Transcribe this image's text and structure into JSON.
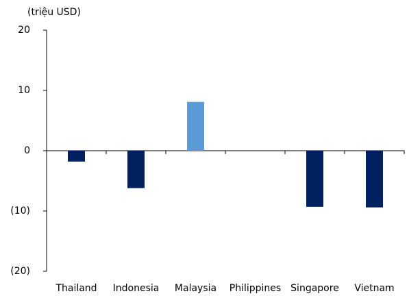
{
  "chart_data": {
    "type": "bar",
    "y_label": "(triệu USD)",
    "categories": [
      "Thailand",
      "Indonesia",
      "Malaysia",
      "Philippines",
      "Singapore",
      "Vietnam"
    ],
    "values": [
      -1.8,
      -6.2,
      8.1,
      0,
      -9.3,
      -9.4
    ],
    "colors": [
      "#002060",
      "#002060",
      "#5b9bd5",
      "#002060",
      "#002060",
      "#002060"
    ],
    "ylim": [
      -20,
      20
    ],
    "yticks": [
      20,
      10,
      0,
      {
        "value": -10,
        "label": "(10)"
      },
      {
        "value": -20,
        "label": "(20)"
      }
    ]
  }
}
